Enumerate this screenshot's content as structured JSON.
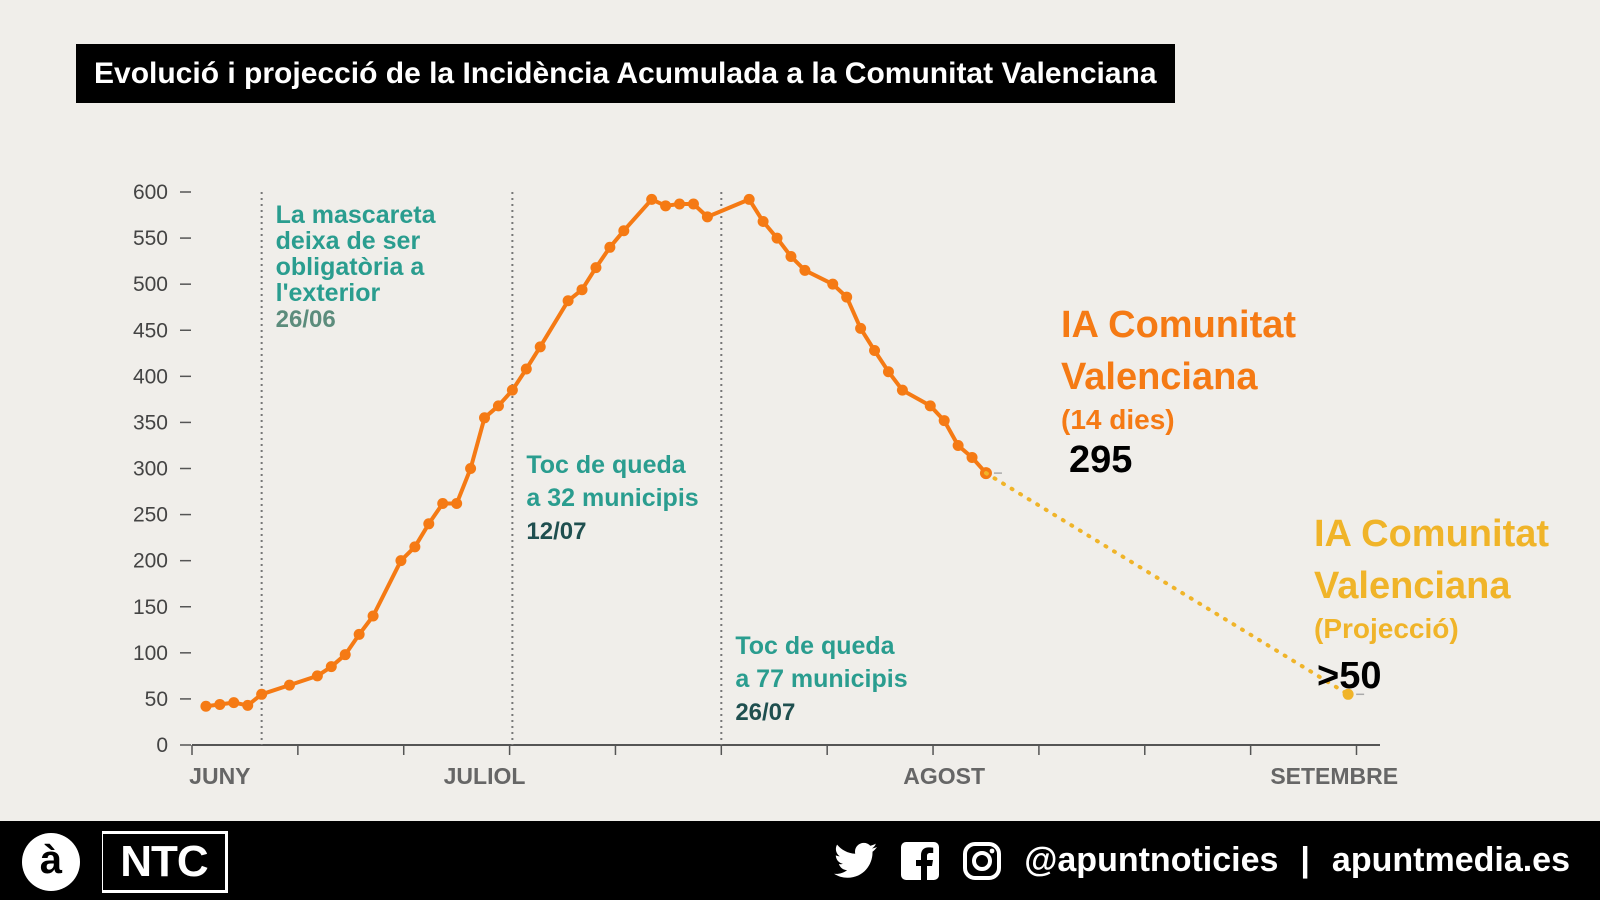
{
  "title": "Evolució i projecció de la Incidència Acumulada a la Comunitat Valenciana",
  "colors": {
    "actual": "#f57a14",
    "projection": "#f0b429",
    "annotation": "#2a9d8f",
    "annotation_dark": "#1f4f4f",
    "axis": "#555555",
    "background": "#f0eeea"
  },
  "chart_data": {
    "type": "line",
    "title": "Evolució i projecció de la Incidència Acumulada a la Comunitat Valenciana",
    "xlabel": "",
    "ylabel": "",
    "ylim": [
      0,
      600
    ],
    "yticks": [
      0,
      50,
      100,
      150,
      200,
      250,
      300,
      350,
      400,
      450,
      500,
      550,
      600
    ],
    "xlim_day": [
      0,
      85
    ],
    "x_month_labels": [
      {
        "label": "JUNY",
        "day": 2
      },
      {
        "label": "JULIOL",
        "day": 21
      },
      {
        "label": "AGOST",
        "day": 54
      },
      {
        "label": "SETEMBRE",
        "day": 82
      }
    ],
    "x_tick_days": [
      0,
      7.6,
      15.2,
      22.8,
      30.4,
      38,
      45.6,
      53.2,
      60.8,
      68.4,
      76,
      83.6,
      91.2
    ],
    "series": [
      {
        "name": "IA Comunitat Valenciana (14 dies)",
        "style": "solid",
        "points": [
          [
            1,
            42
          ],
          [
            2,
            44
          ],
          [
            3,
            46
          ],
          [
            4,
            43
          ],
          [
            5,
            55
          ],
          [
            7,
            65
          ],
          [
            9,
            75
          ],
          [
            10,
            85
          ],
          [
            11,
            98
          ],
          [
            12,
            120
          ],
          [
            13,
            140
          ],
          [
            15,
            200
          ],
          [
            16,
            215
          ],
          [
            17,
            240
          ],
          [
            18,
            262
          ],
          [
            19,
            262
          ],
          [
            20,
            300
          ],
          [
            21,
            355
          ],
          [
            22,
            368
          ],
          [
            23,
            385
          ],
          [
            24,
            408
          ],
          [
            25,
            432
          ],
          [
            27,
            482
          ],
          [
            28,
            494
          ],
          [
            29,
            518
          ],
          [
            30,
            540
          ],
          [
            31,
            558
          ],
          [
            33,
            592
          ],
          [
            34,
            585
          ],
          [
            35,
            587
          ],
          [
            36,
            587
          ],
          [
            37,
            573
          ],
          [
            40,
            592
          ],
          [
            41,
            568
          ],
          [
            42,
            550
          ],
          [
            43,
            530
          ],
          [
            44,
            515
          ],
          [
            46,
            500
          ],
          [
            47,
            486
          ],
          [
            48,
            452
          ],
          [
            49,
            428
          ],
          [
            50,
            405
          ],
          [
            51,
            385
          ],
          [
            53,
            368
          ],
          [
            54,
            352
          ],
          [
            55,
            325
          ],
          [
            56,
            312
          ],
          [
            57,
            295
          ]
        ]
      },
      {
        "name": "IA Comunitat Valenciana (Projecció)",
        "style": "dotted",
        "points": [
          [
            57,
            295
          ],
          [
            83,
            55
          ]
        ]
      }
    ],
    "events": [
      {
        "day": 5,
        "lines": [
          "La mascareta",
          "deixa de ser",
          "obligatòria a",
          "l'exterior"
        ],
        "date": "26/06"
      },
      {
        "day": 23,
        "lines": [
          "Toc de queda",
          "a 32 municipis"
        ],
        "date": "12/07"
      },
      {
        "day": 38,
        "lines": [
          "Toc de queda",
          "a 77 municipis"
        ],
        "date": "26/07"
      }
    ],
    "end_labels": [
      {
        "series": 0,
        "title": [
          "IA Comunitat",
          "Valenciana"
        ],
        "sub": "(14 dies)",
        "value": "295"
      },
      {
        "series": 1,
        "title": [
          "IA Comunitat",
          "Valenciana"
        ],
        "sub": "(Projecció)",
        "value": ">50"
      }
    ]
  },
  "footer": {
    "logo_a": "à",
    "logo_ntc": "NTC",
    "twitter_icon": "twitter-icon",
    "facebook_icon": "facebook-icon",
    "instagram_icon": "instagram-icon",
    "handle": "@apuntnoticies",
    "separator": "|",
    "website": "apuntmedia.es"
  }
}
